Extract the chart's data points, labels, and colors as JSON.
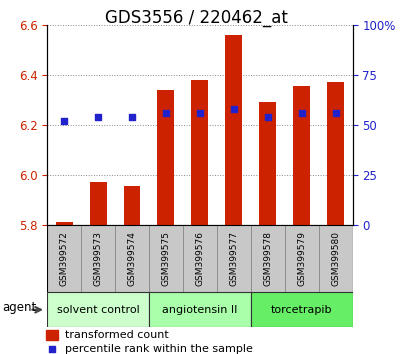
{
  "title": "GDS3556 / 220462_at",
  "samples": [
    "GSM399572",
    "GSM399573",
    "GSM399574",
    "GSM399575",
    "GSM399576",
    "GSM399577",
    "GSM399578",
    "GSM399579",
    "GSM399580"
  ],
  "bar_values": [
    5.81,
    5.97,
    5.955,
    6.34,
    6.38,
    6.56,
    6.29,
    6.355,
    6.37
  ],
  "bar_base": 5.8,
  "percentile_pct": [
    52,
    54,
    54,
    56,
    56,
    58,
    54,
    56,
    56
  ],
  "ylim_left": [
    5.8,
    6.6
  ],
  "ylim_right": [
    0,
    100
  ],
  "yticks_left": [
    5.8,
    6.0,
    6.2,
    6.4,
    6.6
  ],
  "yticks_right": [
    0,
    25,
    50,
    75,
    100
  ],
  "ytick_labels_right": [
    "0",
    "25",
    "50",
    "75",
    "100%"
  ],
  "bar_color": "#cc2200",
  "dot_color": "#2222cc",
  "grid_color": "#888888",
  "groups": [
    {
      "label": "solvent control",
      "indices": [
        0,
        1,
        2
      ],
      "color": "#ccffcc"
    },
    {
      "label": "angiotensin II",
      "indices": [
        3,
        4,
        5
      ],
      "color": "#aaffaa"
    },
    {
      "label": "torcetrapib",
      "indices": [
        6,
        7,
        8
      ],
      "color": "#66ee66"
    }
  ],
  "agent_label": "agent",
  "legend_bar_label": "transformed count",
  "legend_dot_label": "percentile rank within the sample",
  "left_color": "#cc2200",
  "right_color": "#2222cc",
  "title_fontsize": 12,
  "tick_fontsize": 8.5,
  "bar_width": 0.5,
  "sample_label_color": "#333333",
  "sample_box_color": "#c8c8c8",
  "sample_box_edge": "#888888"
}
